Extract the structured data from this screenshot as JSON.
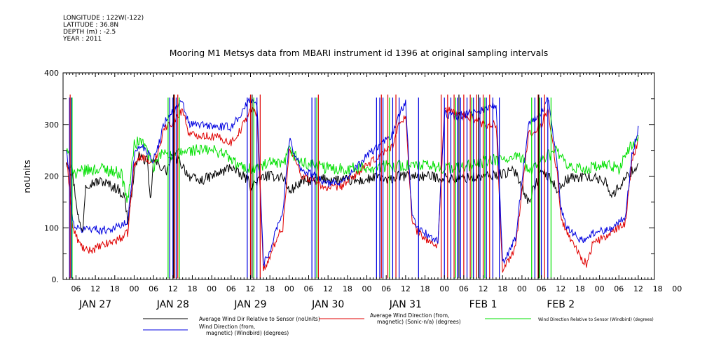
{
  "header": {
    "meta_lines": [
      "LONGITUDE : 122W(-122)",
      "LATITUDE : 36.8N",
      "DEPTH (m) : -2.5",
      "YEAR : 2011"
    ]
  },
  "chart_data": {
    "type": "line",
    "title": "Mooring M1 Metsys data from MBARI instrument id 1396 at original sampling intervals",
    "xlabel": "",
    "ylabel": "noUnits",
    "ylim": [
      0,
      400
    ],
    "yticks": [
      0,
      100,
      200,
      300,
      400
    ],
    "y_tick_labels": [
      "0.",
      "100",
      "200",
      "300",
      "400"
    ],
    "xlim_hours": [
      -22,
      161
    ],
    "x_hour_labels": [
      "06",
      "12",
      "18",
      "00",
      "06",
      "12",
      "18",
      "00",
      "06",
      "12",
      "18",
      "00",
      "06",
      "12",
      "18",
      "00",
      "06",
      "12",
      "18",
      "00",
      "06",
      "12",
      "18",
      "00",
      "06",
      "12",
      "18",
      "00",
      "06",
      "12",
      "18",
      "00"
    ],
    "day_labels": [
      "JAN 27",
      "JAN 28",
      "JAN 29",
      "JAN 30",
      "JAN 31",
      "FEB  1",
      "FEB  2"
    ],
    "grid": false,
    "legend_position": "bottom",
    "series": [
      {
        "name": "Average Wind Dir Relative to Sensor (noUnits)",
        "name_lines": [
          "Average Wind Dir Relative to Sensor (noUnits)"
        ],
        "color": "#000000",
        "keypoints": [
          [
            -21,
            230
          ],
          [
            -19,
            200
          ],
          [
            -17,
            110
          ],
          [
            -16,
            90
          ],
          [
            -15,
            185
          ],
          [
            -10,
            190
          ],
          [
            -5,
            175
          ],
          [
            -3,
            160
          ],
          [
            -2,
            115
          ],
          [
            1,
            240
          ],
          [
            4,
            230
          ],
          [
            5,
            150
          ],
          [
            6,
            230
          ],
          [
            10,
            210
          ],
          [
            12,
            240
          ],
          [
            14,
            230
          ],
          [
            17,
            200
          ],
          [
            20,
            190
          ],
          [
            24,
            200
          ],
          [
            28,
            210
          ],
          [
            30,
            220
          ],
          [
            32,
            205
          ],
          [
            35,
            195
          ],
          [
            36,
            180
          ],
          [
            40,
            200
          ],
          [
            46,
            200
          ],
          [
            48,
            170
          ],
          [
            52,
            190
          ],
          [
            60,
            195
          ],
          [
            70,
            190
          ],
          [
            76,
            200
          ],
          [
            78,
            190
          ],
          [
            82,
            200
          ],
          [
            90,
            200
          ],
          [
            100,
            195
          ],
          [
            110,
            200
          ],
          [
            118,
            210
          ],
          [
            122,
            150
          ],
          [
            126,
            210
          ],
          [
            128,
            200
          ],
          [
            131,
            175
          ],
          [
            134,
            195
          ],
          [
            140,
            200
          ],
          [
            146,
            190
          ],
          [
            148,
            160
          ],
          [
            150,
            180
          ],
          [
            154,
            210
          ],
          [
            156,
            220
          ]
        ],
        "noise": 10
      },
      {
        "name": "Average Wind Direction (from, magnetic) (Sonic-n/a) (degrees)",
        "name_lines": [
          "Average Wind Direction (from,",
          "magnetic) (Sonic-n/a) (degrees)"
        ],
        "color": "#e00000",
        "keypoints": [
          [
            -21,
            230
          ],
          [
            -20,
            180
          ],
          [
            -19,
            100
          ],
          [
            -17,
            70
          ],
          [
            -15,
            55
          ],
          [
            -12,
            60
          ],
          [
            -8,
            70
          ],
          [
            -4,
            80
          ],
          [
            -2,
            90
          ],
          [
            0,
            220
          ],
          [
            2,
            240
          ],
          [
            4,
            230
          ],
          [
            6,
            225
          ],
          [
            8,
            260
          ],
          [
            9,
            290
          ],
          [
            11,
            300
          ],
          [
            13,
            310
          ],
          [
            14,
            320
          ],
          [
            15,
            330
          ],
          [
            17,
            280
          ],
          [
            20,
            280
          ],
          [
            26,
            275
          ],
          [
            30,
            265
          ],
          [
            33,
            290
          ],
          [
            36,
            330
          ],
          [
            38,
            320
          ],
          [
            40,
            20
          ],
          [
            42,
            40
          ],
          [
            44,
            80
          ],
          [
            46,
            100
          ],
          [
            48,
            250
          ],
          [
            50,
            230
          ],
          [
            52,
            200
          ],
          [
            56,
            190
          ],
          [
            60,
            175
          ],
          [
            64,
            180
          ],
          [
            68,
            200
          ],
          [
            72,
            220
          ],
          [
            76,
            240
          ],
          [
            80,
            260
          ],
          [
            82,
            300
          ],
          [
            84,
            320
          ],
          [
            86,
            110
          ],
          [
            88,
            90
          ],
          [
            92,
            70
          ],
          [
            94,
            65
          ],
          [
            96,
            330
          ],
          [
            100,
            320
          ],
          [
            106,
            310
          ],
          [
            108,
            300
          ],
          [
            112,
            300
          ],
          [
            114,
            20
          ],
          [
            118,
            60
          ],
          [
            122,
            280
          ],
          [
            124,
            290
          ],
          [
            126,
            300
          ],
          [
            128,
            330
          ],
          [
            131,
            200
          ],
          [
            132,
            120
          ],
          [
            134,
            90
          ],
          [
            136,
            70
          ],
          [
            138,
            45
          ],
          [
            140,
            30
          ],
          [
            142,
            70
          ],
          [
            148,
            90
          ],
          [
            152,
            110
          ],
          [
            154,
            230
          ],
          [
            156,
            270
          ]
        ],
        "noise": 8
      },
      {
        "name": "Wind Direction Relative to Sensor (Windbird) (degrees)",
        "name_lines": [
          "Wind Direction Relative to Sensor (Windbird) (degrees)"
        ],
        "color": "#00e000",
        "keypoints": [
          [
            -21,
            250
          ],
          [
            -18,
            200
          ],
          [
            -16,
            210
          ],
          [
            -10,
            215
          ],
          [
            -4,
            205
          ],
          [
            -2,
            150
          ],
          [
            0,
            260
          ],
          [
            2,
            270
          ],
          [
            4,
            250
          ],
          [
            6,
            215
          ],
          [
            8,
            240
          ],
          [
            10,
            250
          ],
          [
            12,
            235
          ],
          [
            14,
            245
          ],
          [
            18,
            250
          ],
          [
            24,
            250
          ],
          [
            28,
            245
          ],
          [
            30,
            230
          ],
          [
            34,
            215
          ],
          [
            38,
            215
          ],
          [
            42,
            225
          ],
          [
            46,
            220
          ],
          [
            48,
            250
          ],
          [
            52,
            225
          ],
          [
            60,
            215
          ],
          [
            70,
            215
          ],
          [
            80,
            220
          ],
          [
            90,
            220
          ],
          [
            100,
            215
          ],
          [
            110,
            230
          ],
          [
            120,
            235
          ],
          [
            122,
            210
          ],
          [
            126,
            230
          ],
          [
            128,
            240
          ],
          [
            131,
            250
          ],
          [
            134,
            215
          ],
          [
            140,
            215
          ],
          [
            146,
            220
          ],
          [
            150,
            215
          ],
          [
            152,
            240
          ],
          [
            154,
            260
          ],
          [
            156,
            270
          ]
        ],
        "noise": 12
      },
      {
        "name": "Wind Direction (from, magnetic) (Windbird) (degrees)",
        "name_lines": [
          "Wind Direction (from,",
          "magnetic) (Windbird) (degrees)"
        ],
        "color": "#0000e0",
        "keypoints": [
          [
            -21,
            250
          ],
          [
            -20,
            200
          ],
          [
            -19,
            110
          ],
          [
            -17,
            95
          ],
          [
            -14,
            100
          ],
          [
            -10,
            95
          ],
          [
            -6,
            100
          ],
          [
            -2,
            110
          ],
          [
            0,
            240
          ],
          [
            2,
            260
          ],
          [
            4,
            250
          ],
          [
            6,
            230
          ],
          [
            8,
            270
          ],
          [
            9,
            300
          ],
          [
            11,
            320
          ],
          [
            13,
            330
          ],
          [
            14,
            340
          ],
          [
            15,
            340
          ],
          [
            17,
            300
          ],
          [
            20,
            300
          ],
          [
            26,
            295
          ],
          [
            30,
            295
          ],
          [
            33,
            320
          ],
          [
            36,
            350
          ],
          [
            38,
            340
          ],
          [
            40,
            30
          ],
          [
            42,
            55
          ],
          [
            44,
            100
          ],
          [
            46,
            130
          ],
          [
            48,
            270
          ],
          [
            50,
            240
          ],
          [
            52,
            210
          ],
          [
            56,
            200
          ],
          [
            60,
            185
          ],
          [
            64,
            190
          ],
          [
            68,
            210
          ],
          [
            72,
            240
          ],
          [
            76,
            260
          ],
          [
            80,
            280
          ],
          [
            82,
            320
          ],
          [
            84,
            340
          ],
          [
            86,
            120
          ],
          [
            88,
            100
          ],
          [
            92,
            80
          ],
          [
            94,
            75
          ],
          [
            96,
            320
          ],
          [
            100,
            315
          ],
          [
            106,
            325
          ],
          [
            108,
            330
          ],
          [
            112,
            340
          ],
          [
            114,
            30
          ],
          [
            118,
            80
          ],
          [
            122,
            300
          ],
          [
            124,
            310
          ],
          [
            126,
            320
          ],
          [
            128,
            350
          ],
          [
            131,
            220
          ],
          [
            132,
            140
          ],
          [
            134,
            100
          ],
          [
            136,
            90
          ],
          [
            138,
            75
          ],
          [
            140,
            80
          ],
          [
            142,
            90
          ],
          [
            148,
            100
          ],
          [
            152,
            120
          ],
          [
            154,
            240
          ],
          [
            156,
            290
          ]
        ],
        "noise": 8
      }
    ],
    "spikes": [
      {
        "color": "#0000e0",
        "hours": [
          -20,
          -19.5,
          11,
          12,
          13,
          35,
          38,
          55,
          56,
          75,
          76,
          77,
          80,
          82,
          88,
          96,
          98,
          100,
          101,
          103,
          105,
          107,
          109,
          111,
          113,
          124,
          126,
          128
        ]
      },
      {
        "color": "#e00000",
        "hours": [
          -19.8,
          12.5,
          13.5,
          36,
          39,
          57,
          76.5,
          78.5,
          81,
          95,
          97,
          99,
          102,
          104,
          106,
          108,
          110,
          125,
          127
        ]
      },
      {
        "color": "#00e000",
        "hours": [
          -19.2,
          10.5,
          14,
          37,
          56.5,
          79,
          99.5,
          104.5,
          108.5,
          123,
          125.5,
          129
        ]
      },
      {
        "color": "#000000",
        "hours": [
          12.2,
          36.5,
          100.5,
          106.5,
          125.2
        ]
      }
    ]
  }
}
